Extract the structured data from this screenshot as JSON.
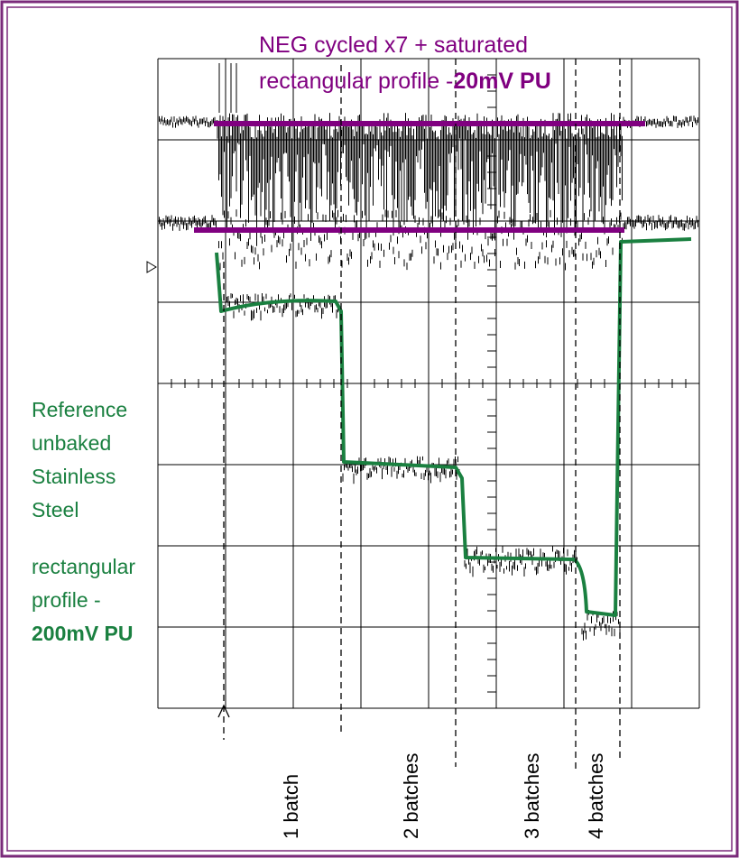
{
  "title": {
    "line1": "NEG cycled x7 + saturated",
    "line2": "rectangular profile -",
    "line2_bold": "20mV PU"
  },
  "reference_note": {
    "lines": [
      "Reference",
      "unbaked",
      "Stainless",
      "Steel"
    ],
    "profile_lines": [
      "rectangular",
      "profile -"
    ],
    "profile_bold": "200mV PU"
  },
  "batch_labels": [
    "1 batch",
    "2 batches",
    "3 batches",
    "4 batches"
  ]
}
